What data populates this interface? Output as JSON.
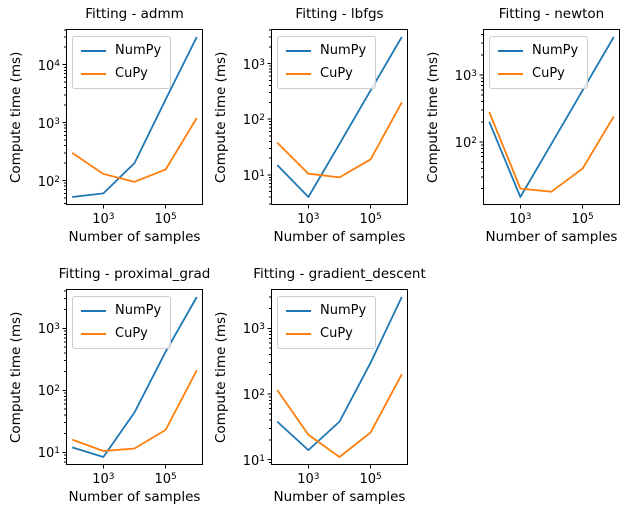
{
  "figure": {
    "background": "#ffffff",
    "accent_colors": {
      "numpy_blue": "#1f77b4",
      "cupy_orange": "#ff7f0e"
    },
    "axes_color": "#000000",
    "legend_border_color": "#cccccc"
  },
  "chart_data": [
    {
      "type": "line",
      "title": "Fitting - admm",
      "xlabel": "Number of samples",
      "ylabel": "Compute time (ms)",
      "xscale": "log",
      "yscale": "log",
      "grid": false,
      "legend_position": "upper left",
      "x": [
        100,
        1000,
        10000,
        100000,
        1000000
      ],
      "series": [
        {
          "name": "NumPy",
          "color": "#1f77b4",
          "values": [
            52,
            60,
            200,
            2500,
            30000
          ]
        },
        {
          "name": "CuPy",
          "color": "#ff7f0e",
          "values": [
            300,
            130,
            95,
            155,
            1200
          ]
        }
      ],
      "x_tick_exponents": [
        3,
        5
      ],
      "y_tick_exponents": [
        2,
        3,
        4
      ],
      "x_tick_labels": [
        "10^3",
        "10^5"
      ],
      "y_tick_labels": [
        "10^2",
        "10^3",
        "10^4"
      ],
      "log_margin": 0.05
    },
    {
      "type": "line",
      "title": "Fitting - lbfgs",
      "xlabel": "Number of samples",
      "ylabel": "Compute time (ms)",
      "xscale": "log",
      "yscale": "log",
      "grid": false,
      "legend_position": "upper left",
      "x": [
        100,
        1000,
        10000,
        100000,
        1000000
      ],
      "series": [
        {
          "name": "NumPy",
          "color": "#1f77b4",
          "values": [
            15,
            4,
            36,
            330,
            3000
          ]
        },
        {
          "name": "CuPy",
          "color": "#ff7f0e",
          "values": [
            38,
            10.5,
            9,
            19,
            200
          ]
        }
      ],
      "x_tick_exponents": [
        3,
        5
      ],
      "y_tick_exponents": [
        1,
        2,
        3
      ],
      "x_tick_labels": [
        "10^3",
        "10^5"
      ],
      "y_tick_labels": [
        "10^1",
        "10^2",
        "10^3"
      ],
      "log_margin": 0.05
    },
    {
      "type": "line",
      "title": "Fitting - newton",
      "xlabel": "Number of samples",
      "ylabel": "Compute time (ms)",
      "xscale": "log",
      "yscale": "log",
      "grid": false,
      "legend_position": "upper left",
      "x": [
        100,
        1000,
        10000,
        100000,
        1000000
      ],
      "series": [
        {
          "name": "NumPy",
          "color": "#1f77b4",
          "values": [
            200,
            15,
            94,
            590,
            3700
          ]
        },
        {
          "name": "CuPy",
          "color": "#ff7f0e",
          "values": [
            280,
            20,
            18,
            40,
            240
          ]
        }
      ],
      "x_tick_exponents": [
        3,
        5
      ],
      "y_tick_exponents": [
        2,
        3
      ],
      "x_tick_labels": [
        "10^3",
        "10^5"
      ],
      "y_tick_labels": [
        "10^2",
        "10^3"
      ],
      "log_margin": 0.05
    },
    {
      "type": "line",
      "title": "Fitting - proximal_grad",
      "xlabel": "Number of samples",
      "ylabel": "Compute time (ms)",
      "xscale": "log",
      "yscale": "log",
      "grid": false,
      "legend_position": "upper left",
      "x": [
        100,
        1000,
        10000,
        100000,
        1000000
      ],
      "series": [
        {
          "name": "NumPy",
          "color": "#1f77b4",
          "values": [
            12,
            8.4,
            44,
            420,
            3200
          ]
        },
        {
          "name": "CuPy",
          "color": "#ff7f0e",
          "values": [
            16,
            10.5,
            11.5,
            23,
            210
          ]
        }
      ],
      "x_tick_exponents": [
        3,
        5
      ],
      "y_tick_exponents": [
        1,
        2,
        3
      ],
      "x_tick_labels": [
        "10^3",
        "10^5"
      ],
      "y_tick_labels": [
        "10^1",
        "10^2",
        "10^3"
      ],
      "log_margin": 0.05
    },
    {
      "type": "line",
      "title": "Fitting - gradient_descent",
      "xlabel": "Number of samples",
      "ylabel": "Compute time (ms)",
      "xscale": "log",
      "yscale": "log",
      "grid": false,
      "legend_position": "upper left",
      "x": [
        100,
        1000,
        10000,
        100000,
        1000000
      ],
      "series": [
        {
          "name": "NumPy",
          "color": "#1f77b4",
          "values": [
            38,
            14,
            38,
            300,
            3000
          ]
        },
        {
          "name": "CuPy",
          "color": "#ff7f0e",
          "values": [
            115,
            24,
            11,
            26,
            200
          ]
        }
      ],
      "x_tick_exponents": [
        3,
        5
      ],
      "y_tick_exponents": [
        1,
        2,
        3
      ],
      "x_tick_labels": [
        "10^3",
        "10^5"
      ],
      "y_tick_labels": [
        "10^1",
        "10^2",
        "10^3"
      ],
      "log_margin": 0.05
    }
  ]
}
